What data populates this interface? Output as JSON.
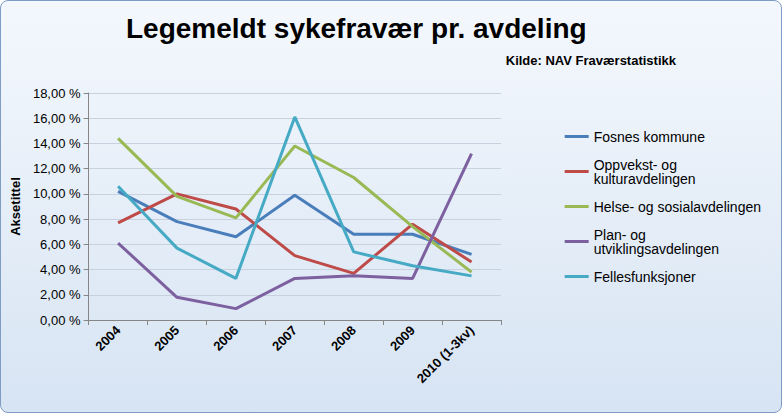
{
  "chart_data": {
    "type": "line",
    "title": "Legemeldt sykefravær pr. avdeling",
    "subtitle": "Kilde: NAV Fraværstatistikk",
    "y_label": "Aksetittel",
    "categories": [
      "2004",
      "2005",
      "2006",
      "2007",
      "2008",
      "2009",
      "2010 (1-3kv)"
    ],
    "series": [
      {
        "name": "Fosnes kommune",
        "color": "#4a7ebb",
        "values": [
          10.2,
          7.8,
          6.6,
          9.9,
          6.8,
          6.8,
          5.2
        ]
      },
      {
        "name": "Oppvekst- og kulturavdelingen",
        "color": "#be4b48",
        "values": [
          7.7,
          10.0,
          8.8,
          5.1,
          3.7,
          7.6,
          4.6
        ]
      },
      {
        "name": "Helse- og sosialavdelingen",
        "color": "#98b954",
        "values": [
          14.4,
          9.8,
          8.1,
          13.8,
          11.3,
          7.4,
          3.8
        ]
      },
      {
        "name": "Plan- og utviklingsavdelingen",
        "color": "#7d60a0",
        "values": [
          6.1,
          1.8,
          0.9,
          3.3,
          3.5,
          3.3,
          13.2
        ]
      },
      {
        "name": "Fellesfunksjoner",
        "color": "#46aac5",
        "values": [
          10.6,
          5.7,
          3.3,
          16.1,
          5.4,
          4.3,
          3.5
        ]
      }
    ],
    "ylim": [
      0,
      18
    ],
    "yticks": [
      {
        "value": 0,
        "label": "0,00 %"
      },
      {
        "value": 2,
        "label": "2,00 %"
      },
      {
        "value": 4,
        "label": "4,00 %"
      },
      {
        "value": 6,
        "label": "6,00 %"
      },
      {
        "value": 8,
        "label": "8,00 %"
      },
      {
        "value": 10,
        "label": "10,00 %"
      },
      {
        "value": 12,
        "label": "12,00 %"
      },
      {
        "value": 14,
        "label": "14,00 %"
      },
      {
        "value": 16,
        "label": "16,00 %"
      },
      {
        "value": 18,
        "label": "18,00 %"
      }
    ],
    "grid": true,
    "legend": "right"
  }
}
